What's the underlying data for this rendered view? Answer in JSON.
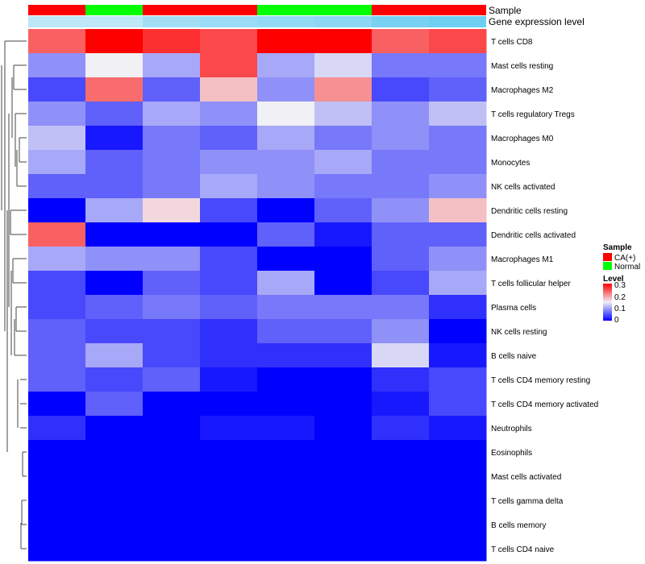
{
  "chart_data": {
    "type": "heatmap",
    "annotation_tracks": [
      {
        "name": "Sample",
        "values": [
          "CA(+)",
          "Normal",
          "CA(+)",
          "CA(+)",
          "Normal",
          "Normal",
          "CA(+)",
          "CA(+)"
        ]
      },
      {
        "name": "Gene expression level",
        "values": [
          0.3,
          0.3,
          0.5,
          0.55,
          0.6,
          0.65,
          0.8,
          0.85
        ]
      }
    ],
    "rows": [
      "T cells CD8",
      "Mast cells resting",
      "Macrophages M2",
      "T cells regulatory  Tregs",
      "Macrophages M0",
      "Monocytes",
      "NK cells activated",
      "Dendritic cells resting",
      "Dendritic cells activated",
      "Macrophages M1",
      "T cells follicular helper",
      "Plasma cells",
      "NK cells resting",
      "B cells naive",
      "T cells CD4 memory resting",
      "T cells CD4 memory activated",
      "Neutrophils",
      "Eosinophils",
      "Mast cells activated",
      "T cells gamma delta",
      "B cells memory",
      "T cells CD4 naive"
    ],
    "values": [
      [
        0.22,
        0.3,
        0.26,
        0.24,
        0.3,
        0.3,
        0.22,
        0.24
      ],
      [
        0.06,
        0.1,
        0.07,
        0.24,
        0.07,
        0.09,
        0.05,
        0.05
      ],
      [
        0.03,
        0.21,
        0.04,
        0.14,
        0.06,
        0.18,
        0.03,
        0.04
      ],
      [
        0.06,
        0.04,
        0.07,
        0.06,
        0.1,
        0.08,
        0.06,
        0.08
      ],
      [
        0.08,
        0.01,
        0.05,
        0.04,
        0.07,
        0.05,
        0.06,
        0.05
      ],
      [
        0.07,
        0.04,
        0.05,
        0.06,
        0.06,
        0.07,
        0.05,
        0.05
      ],
      [
        0.04,
        0.04,
        0.05,
        0.07,
        0.06,
        0.05,
        0.05,
        0.06
      ],
      [
        0.0,
        0.07,
        0.12,
        0.03,
        0.0,
        0.04,
        0.06,
        0.14
      ],
      [
        0.22,
        0.0,
        0.0,
        0.0,
        0.04,
        0.01,
        0.04,
        0.04
      ],
      [
        0.07,
        0.06,
        0.06,
        0.03,
        0.0,
        0.0,
        0.04,
        0.06
      ],
      [
        0.03,
        0.0,
        0.04,
        0.03,
        0.07,
        0.0,
        0.03,
        0.07
      ],
      [
        0.03,
        0.04,
        0.05,
        0.04,
        0.05,
        0.05,
        0.05,
        0.02
      ],
      [
        0.04,
        0.03,
        0.03,
        0.02,
        0.04,
        0.04,
        0.06,
        0.0
      ],
      [
        0.04,
        0.07,
        0.03,
        0.02,
        0.02,
        0.02,
        0.09,
        0.01
      ],
      [
        0.04,
        0.03,
        0.04,
        0.01,
        0.0,
        0.0,
        0.02,
        0.03
      ],
      [
        0.0,
        0.04,
        0.0,
        0.0,
        0.0,
        0.0,
        0.01,
        0.03
      ],
      [
        0.02,
        0.0,
        0.0,
        0.01,
        0.01,
        0.0,
        0.02,
        0.01
      ],
      [
        0.0,
        0.0,
        0.0,
        0.0,
        0.0,
        0.0,
        0.0,
        0.0
      ],
      [
        0.0,
        0.0,
        0.0,
        0.0,
        0.0,
        0.0,
        0.0,
        0.0
      ],
      [
        0.0,
        0.0,
        0.0,
        0.0,
        0.0,
        0.0,
        0.0,
        0.0
      ],
      [
        0.0,
        0.0,
        0.0,
        0.0,
        0.0,
        0.0,
        0.0,
        0.0
      ],
      [
        0.0,
        0.0,
        0.0,
        0.0,
        0.0,
        0.0,
        0.0,
        0.0
      ]
    ],
    "color_scale": {
      "min": 0,
      "mid": 0.1,
      "max": 0.3,
      "low": "#0000ff",
      "midcolor": "#f0f0f5",
      "high": "#ff0000"
    },
    "legend": {
      "placement": "right",
      "sample_title": "Sample",
      "sample_entries": [
        {
          "label": "CA(+)",
          "color": "#ff0000"
        },
        {
          "label": "Normal",
          "color": "#00ff00"
        }
      ],
      "level_title": "Level",
      "level_ticks": [
        "0.3",
        "0.2",
        "0.1",
        "0"
      ]
    },
    "annotation_colors": {
      "CA(+)": "#ff0000",
      "Normal": "#00ff00",
      "expr_low": "#e9f4fb",
      "expr_high": "#5ac8f0"
    },
    "dendrogram": "row"
  }
}
